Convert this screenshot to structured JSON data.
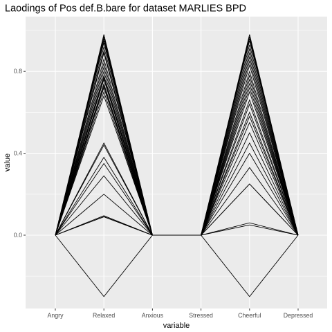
{
  "chart_data": {
    "type": "line",
    "title": "Laodings of Pos def.B.bare for dataset MARLIES BPD",
    "xlabel": "variable",
    "ylabel": "value",
    "categories": [
      "Angry",
      "Relaxed",
      "Anxious",
      "Stressed",
      "Cheerful",
      "Depressed"
    ],
    "ylim": [
      -0.36,
      1.01
    ],
    "yticks": [
      0.0,
      0.4,
      0.8
    ],
    "ytick_labels": [
      "0.0",
      "0.4",
      "0.8"
    ],
    "grid": true,
    "legend": "none",
    "colors": {
      "panel": "#ebebeb",
      "grid": "#ffffff",
      "line": "#000000",
      "tick_text": "#4d4d4d",
      "tick_mark": "#333333"
    },
    "series": [
      {
        "values": [
          0,
          0.98,
          0,
          0,
          0.98,
          0
        ]
      },
      {
        "values": [
          0,
          0.97,
          0,
          0,
          0.97,
          0
        ]
      },
      {
        "values": [
          0,
          0.96,
          0,
          0,
          0.96,
          0
        ]
      },
      {
        "values": [
          0,
          0.95,
          0,
          0,
          0.95,
          0
        ]
      },
      {
        "values": [
          0,
          0.94,
          0,
          0,
          0.93,
          0
        ]
      },
      {
        "values": [
          0,
          0.92,
          0,
          0,
          0.91,
          0
        ]
      },
      {
        "values": [
          0,
          0.9,
          0,
          0,
          0.89,
          0
        ]
      },
      {
        "values": [
          0,
          0.89,
          0,
          0,
          0.87,
          0
        ]
      },
      {
        "values": [
          0,
          0.86,
          0,
          0,
          0.85,
          0
        ]
      },
      {
        "values": [
          0,
          0.84,
          0,
          0,
          0.83,
          0
        ]
      },
      {
        "values": [
          0,
          0.82,
          0,
          0,
          0.8,
          0
        ]
      },
      {
        "values": [
          0,
          0.8,
          0,
          0,
          0.78,
          0
        ]
      },
      {
        "values": [
          0,
          0.78,
          0,
          0,
          0.76,
          0
        ]
      },
      {
        "values": [
          0,
          0.77,
          0,
          0,
          0.74,
          0
        ]
      },
      {
        "values": [
          0,
          0.76,
          0,
          0,
          0.72,
          0
        ]
      },
      {
        "values": [
          0,
          0.74,
          0,
          0,
          0.7,
          0
        ]
      },
      {
        "values": [
          0,
          0.73,
          0,
          0,
          0.66,
          0
        ]
      },
      {
        "values": [
          0,
          0.72,
          0,
          0,
          0.64,
          0
        ]
      },
      {
        "values": [
          0,
          0.7,
          0,
          0,
          0.6,
          0
        ]
      },
      {
        "values": [
          0,
          0.68,
          0,
          0,
          0.58,
          0
        ]
      },
      {
        "values": [
          0,
          0.45,
          0,
          0,
          0.55,
          0
        ]
      },
      {
        "values": [
          0,
          0.44,
          0,
          0,
          0.5,
          0
        ]
      },
      {
        "values": [
          0,
          0.38,
          0,
          0,
          0.45,
          0
        ]
      },
      {
        "values": [
          0,
          0.35,
          0,
          0,
          0.4,
          0
        ]
      },
      {
        "values": [
          0,
          0.29,
          0,
          0,
          0.33,
          0
        ]
      },
      {
        "values": [
          0,
          0.2,
          0,
          0,
          0.25,
          0
        ]
      },
      {
        "values": [
          0,
          0.095,
          0,
          0,
          0.25,
          0
        ]
      },
      {
        "values": [
          0,
          0.09,
          0,
          0,
          0.06,
          0
        ]
      },
      {
        "values": [
          0,
          0.09,
          0,
          0,
          0.05,
          0
        ]
      },
      {
        "values": [
          0,
          -0.3,
          0,
          0,
          -0.3,
          0
        ]
      }
    ]
  }
}
